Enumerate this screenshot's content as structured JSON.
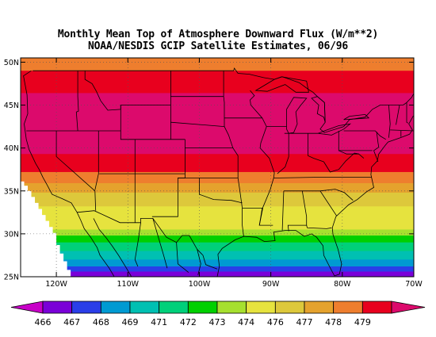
{
  "title_line1": "Monthly Mean Top of Atmosphere Downward Flux (W/m**2)",
  "title_line2": "NOAA/NESDIS GCIP Satellite Estimates, 06/96",
  "map": {
    "lon_range": [
      -125,
      -70
    ],
    "lat_range": [
      25,
      50.5
    ],
    "lat_ticks": [
      {
        "value": 50,
        "label": "50N"
      },
      {
        "value": 45,
        "label": "45N"
      },
      {
        "value": 40,
        "label": "40N"
      },
      {
        "value": 35,
        "label": "35N"
      },
      {
        "value": 30,
        "label": "30N"
      },
      {
        "value": 25,
        "label": "25N"
      }
    ],
    "lon_ticks": [
      {
        "value": -120,
        "label": "120W"
      },
      {
        "value": -110,
        "label": "110W"
      },
      {
        "value": -100,
        "label": "100W"
      },
      {
        "value": -90,
        "label": "90W"
      },
      {
        "value": -80,
        "label": "80W"
      },
      {
        "value": -70,
        "label": "70W"
      }
    ],
    "grid": "dotted",
    "bands": [
      {
        "lat_min": 49.0,
        "lat_max": 50.5,
        "color": "#ee7e2e"
      },
      {
        "lat_min": 46.4,
        "lat_max": 49.0,
        "color": "#e8001e"
      },
      {
        "lat_min": 39.3,
        "lat_max": 46.4,
        "color": "#dc0a6c"
      },
      {
        "lat_min": 37.2,
        "lat_max": 39.3,
        "color": "#e8001e"
      },
      {
        "lat_min": 35.9,
        "lat_max": 37.2,
        "color": "#ee7e2e"
      },
      {
        "lat_min": 34.8,
        "lat_max": 35.9,
        "color": "#e5a22d"
      },
      {
        "lat_min": 33.2,
        "lat_max": 34.8,
        "color": "#ddc83b"
      },
      {
        "lat_min": 30.5,
        "lat_max": 33.2,
        "color": "#e6e33e"
      },
      {
        "lat_min": 29.8,
        "lat_max": 30.5,
        "color": "#a6e02f"
      },
      {
        "lat_min": 29.0,
        "lat_max": 29.8,
        "color": "#00d000"
      },
      {
        "lat_min": 28.0,
        "lat_max": 29.0,
        "color": "#00d07a"
      },
      {
        "lat_min": 27.0,
        "lat_max": 28.0,
        "color": "#00c0b2"
      },
      {
        "lat_min": 26.2,
        "lat_max": 27.0,
        "color": "#009ad2"
      },
      {
        "lat_min": 25.6,
        "lat_max": 26.2,
        "color": "#2a3ee8"
      },
      {
        "lat_min": 25.0,
        "lat_max": 25.6,
        "color": "#7a00d8"
      }
    ]
  },
  "colorbar": {
    "left_arrow_color": "#c800c8",
    "right_arrow_color": "#dc0a6c",
    "segments": [
      "#7a00d8",
      "#2a3ee8",
      "#009ad2",
      "#00c0b2",
      "#00d07a",
      "#00d000",
      "#a6e02f",
      "#e6e33e",
      "#ddc83b",
      "#e5a22d",
      "#ee7e2e",
      "#e8001e"
    ],
    "labels": [
      "466",
      "467",
      "468",
      "469",
      "471",
      "472",
      "473",
      "474",
      "476",
      "477",
      "478",
      "479"
    ]
  }
}
